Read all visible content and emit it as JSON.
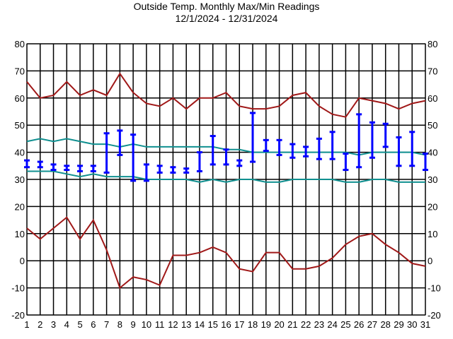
{
  "chart_data": {
    "type": "line",
    "title": "Outside Temp. Monthly Max/Min Readings",
    "subtitle": "12/1/2024 - 12/31/2024",
    "x": [
      1,
      2,
      3,
      4,
      5,
      6,
      7,
      8,
      9,
      10,
      11,
      12,
      13,
      14,
      15,
      16,
      17,
      18,
      19,
      20,
      21,
      22,
      23,
      24,
      25,
      26,
      27,
      28,
      29,
      30,
      31
    ],
    "xlim": [
      1,
      31
    ],
    "ylim": [
      -20,
      80
    ],
    "y_ticks": [
      -20,
      -10,
      0,
      10,
      20,
      30,
      40,
      50,
      60,
      70,
      80
    ],
    "grid": true,
    "series": [
      {
        "values": [
          66,
          60,
          61,
          66,
          61,
          63,
          61,
          69,
          62,
          58,
          57,
          60,
          56,
          60,
          60,
          62,
          57,
          56,
          56,
          57,
          61,
          62,
          57,
          54,
          53,
          60,
          59,
          58,
          56,
          58,
          59
        ]
      },
      {
        "values": [
          44,
          45,
          44,
          45,
          44,
          43,
          43,
          42,
          43,
          42,
          42,
          42,
          42,
          42,
          42,
          41,
          41,
          40,
          40,
          40,
          40,
          40,
          40,
          40,
          40,
          39,
          40,
          40,
          40,
          40,
          39
        ]
      },
      {
        "values": [
          33,
          33,
          33,
          32,
          31,
          32,
          31,
          31,
          31,
          30,
          30,
          30,
          30,
          29,
          30,
          29,
          30,
          30,
          29,
          29,
          30,
          30,
          30,
          30,
          29,
          29,
          30,
          30,
          29,
          29,
          29
        ]
      },
      {
        "values": [
          12,
          8,
          12,
          16,
          8,
          15,
          4,
          -10,
          -6,
          -7,
          -9,
          2,
          2,
          3,
          5,
          3,
          -3,
          -4,
          3,
          3,
          -3,
          -3,
          -2,
          1,
          6,
          9,
          10,
          6,
          3,
          -1,
          -2
        ]
      }
    ],
    "ranges": {
      "high": [
        37,
        36.5,
        35.5,
        35,
        35,
        35,
        47,
        48,
        46.5,
        35.5,
        35,
        34.5,
        34,
        40,
        46,
        41,
        37,
        54.5,
        44.5,
        44.5,
        43,
        42,
        45,
        47.5,
        39.5,
        54,
        51,
        50.5,
        45.5,
        47.5,
        39.5
      ],
      "low": [
        34.5,
        34.5,
        33.5,
        33.5,
        33,
        33,
        32.5,
        39,
        29.5,
        29.5,
        32.5,
        32.5,
        32.5,
        33,
        35.5,
        35.5,
        35,
        36.5,
        40.5,
        39,
        38,
        38.5,
        37.5,
        37.5,
        33.5,
        34.5,
        38,
        42,
        35,
        35,
        33.5
      ]
    },
    "colors": {
      "record_lines": "#a01818",
      "normal_lines": "#109090",
      "range_bars": "#0000ff",
      "grid": "#000000"
    }
  }
}
